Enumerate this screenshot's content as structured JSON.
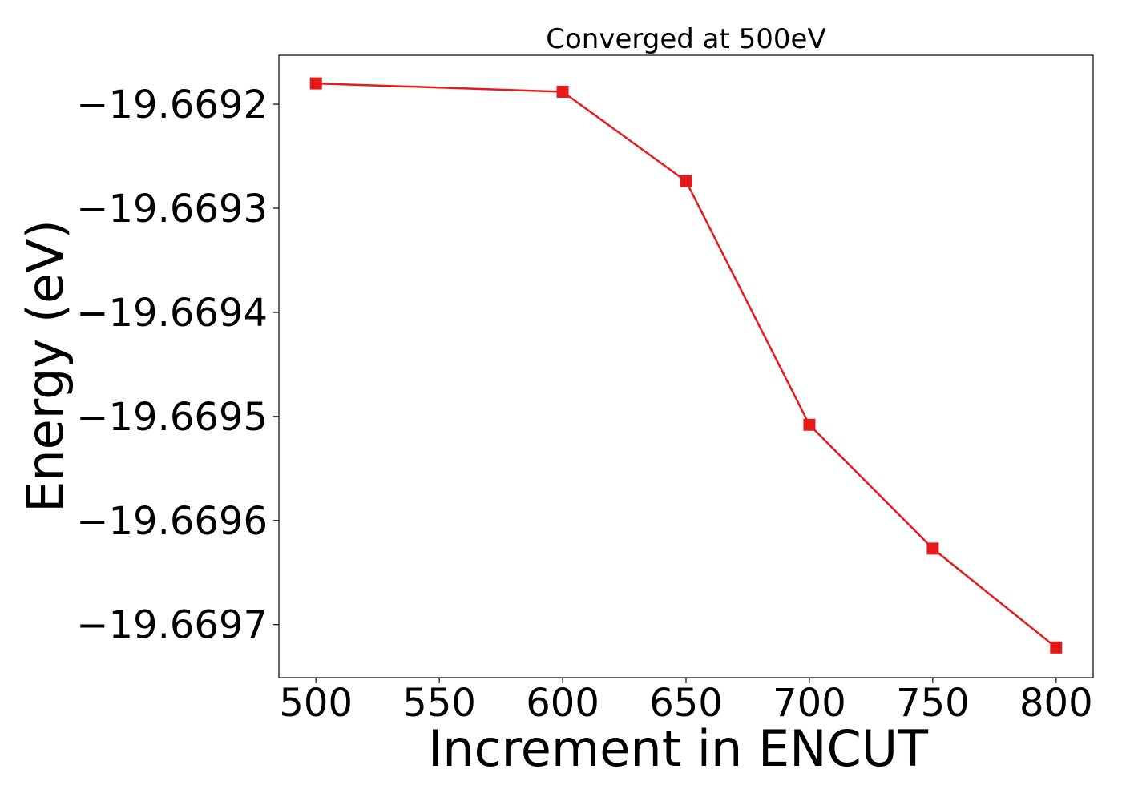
{
  "chart_data": {
    "type": "line",
    "title": "Converged at 500eV",
    "xlabel": "Increment in ENCUT",
    "ylabel": "Energy (eV)",
    "x": [
      500,
      600,
      650,
      700,
      750,
      800
    ],
    "series": [
      {
        "values": [
          -19.66918,
          -19.669188,
          -19.669274,
          -19.669508,
          -19.669627,
          -19.669722
        ],
        "color": "#e41a1c",
        "marker": "square"
      }
    ],
    "xlim": [
      485,
      815
    ],
    "ylim": [
      -19.669751,
      -19.669153
    ],
    "xticks": [
      500,
      550,
      600,
      650,
      700,
      750,
      800
    ],
    "xtick_labels": [
      "500",
      "550",
      "600",
      "650",
      "700",
      "750",
      "800"
    ],
    "yticks": [
      -19.6692,
      -19.6693,
      -19.6694,
      -19.6695,
      -19.6696,
      -19.6697
    ],
    "ytick_labels": [
      "−19.6692",
      "−19.6693",
      "−19.6694",
      "−19.6695",
      "−19.6696",
      "−19.6697"
    ],
    "grid": false,
    "legend": false
  }
}
